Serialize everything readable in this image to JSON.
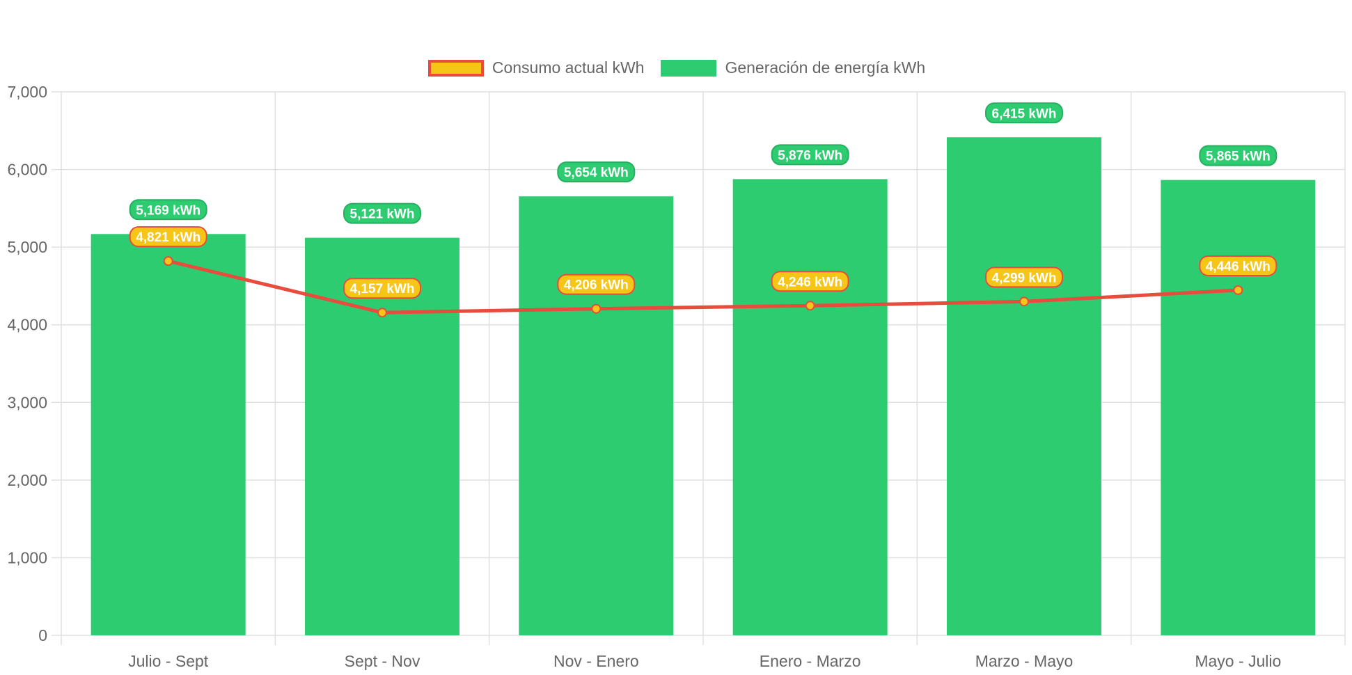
{
  "colors": {
    "consumo_fill": "#F5C518",
    "consumo_line": "#E74C3C",
    "generacion_fill": "#2ECC71",
    "generacion_border": "#27AE60",
    "grid": "#E0E0E0",
    "axis_text": "#666666"
  },
  "legend": {
    "consumo": "Consumo actual kWh",
    "generacion": "Generación de energía kWh"
  },
  "chart_data": {
    "type": "bar",
    "categories": [
      "Julio - Sept",
      "Sept - Nov",
      "Nov - Enero",
      "Enero - Marzo",
      "Marzo - Mayo",
      "Mayo - Julio"
    ],
    "series": [
      {
        "name": "Generación de energía kWh",
        "type": "bar",
        "values": [
          5169,
          5121,
          5654,
          5876,
          6415,
          5865
        ],
        "labels": [
          "5,169 kWh",
          "5,121 kWh",
          "5,654 kWh",
          "5,876 kWh",
          "6,415 kWh",
          "5,865 kWh"
        ]
      },
      {
        "name": "Consumo actual kWh",
        "type": "line",
        "values": [
          4821,
          4157,
          4206,
          4246,
          4299,
          4446
        ],
        "labels": [
          "4,821 kWh",
          "4,157 kWh",
          "4,206 kWh",
          "4,246 kWh",
          "4,299 kWh",
          "4,446 kWh"
        ]
      }
    ],
    "ylim": [
      0,
      7000
    ],
    "yticks": [
      0,
      1000,
      2000,
      3000,
      4000,
      5000,
      6000,
      7000
    ],
    "ytick_labels": [
      "0",
      "1,000",
      "2,000",
      "3,000",
      "4,000",
      "5,000",
      "6,000",
      "7,000"
    ],
    "grid": true,
    "legend_position": "top-center",
    "title": "",
    "xlabel": "",
    "ylabel": ""
  }
}
